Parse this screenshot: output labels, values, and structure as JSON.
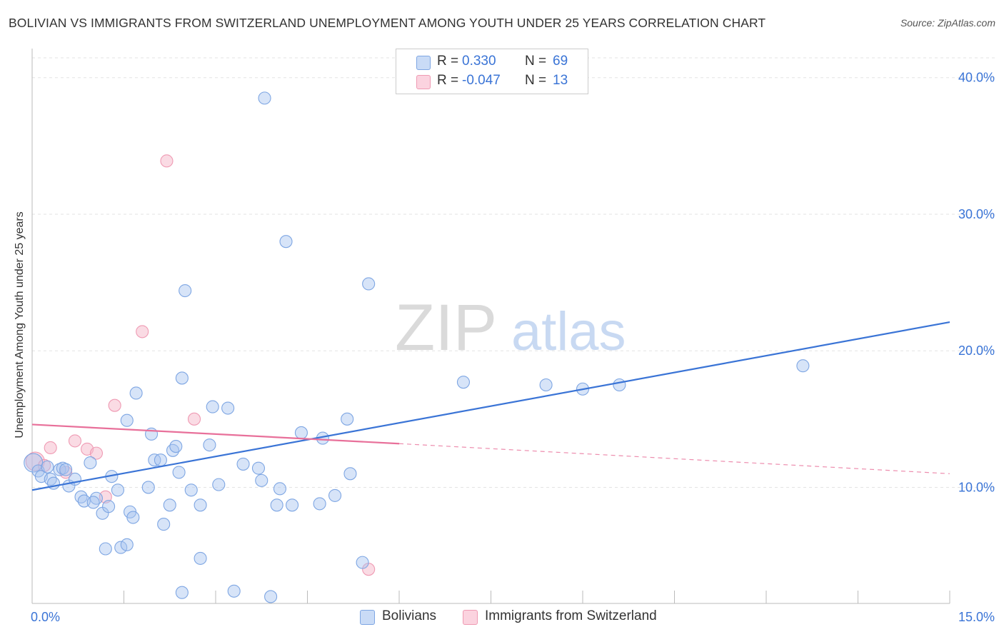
{
  "title": "BOLIVIAN VS IMMIGRANTS FROM SWITZERLAND UNEMPLOYMENT AMONG YOUTH UNDER 25 YEARS CORRELATION CHART",
  "source": "Source: ZipAtlas.com",
  "watermark": {
    "zip": "ZIP",
    "atlas": "atlas"
  },
  "legend_stats": [
    {
      "r_label": "R =",
      "r_value": "0.330",
      "n_label": "N =",
      "n_value": "69",
      "color": "#a7c4ef"
    },
    {
      "r_label": "R =",
      "r_value": "-0.047",
      "n_label": "N =",
      "n_value": "13",
      "color": "#f5b8c9"
    }
  ],
  "bottom_legend": [
    {
      "label": "Bolivians",
      "color": "#a7c4ef"
    },
    {
      "label": "Immigrants from Switzerland",
      "color": "#f5b8c9"
    }
  ],
  "chart_data": {
    "type": "scatter",
    "title": "BOLIVIAN VS IMMIGRANTS FROM SWITZERLAND UNEMPLOYMENT AMONG YOUTH UNDER 25 YEARS CORRELATION CHART",
    "xlabel": "",
    "ylabel": "Unemployment Among Youth under 25 years",
    "xlim": [
      0,
      15
    ],
    "ylim": [
      1.5,
      41.5
    ],
    "x_ticks": [
      {
        "value": 0,
        "label": "0.0%"
      },
      {
        "value": 15,
        "label": "15.0%"
      }
    ],
    "y_ticks": [
      {
        "value": 10,
        "label": "10.0%"
      },
      {
        "value": 20,
        "label": "20.0%"
      },
      {
        "value": 30,
        "label": "30.0%"
      },
      {
        "value": 40,
        "label": "40.0%"
      }
    ],
    "grid": true,
    "legend_position": "top-center",
    "series": [
      {
        "name": "Bolivians",
        "color": "#3a74d6",
        "fill": "#a7c4ef",
        "trend": {
          "x": [
            0,
            15
          ],
          "y": [
            9.8,
            22.1
          ]
        },
        "points": [
          [
            0.02,
            11.8
          ],
          [
            0.1,
            11.2
          ],
          [
            0.15,
            10.8
          ],
          [
            0.25,
            11.5
          ],
          [
            0.3,
            10.6
          ],
          [
            0.35,
            10.3
          ],
          [
            0.45,
            11.3
          ],
          [
            0.5,
            11.4
          ],
          [
            0.6,
            10.1
          ],
          [
            0.7,
            10.6
          ],
          [
            0.8,
            9.3
          ],
          [
            0.85,
            9.0
          ],
          [
            0.95,
            11.8
          ],
          [
            1.05,
            9.2
          ],
          [
            1.15,
            8.1
          ],
          [
            1.25,
            8.6
          ],
          [
            1.3,
            10.8
          ],
          [
            1.4,
            9.8
          ],
          [
            1.55,
            14.9
          ],
          [
            1.6,
            8.2
          ],
          [
            1.65,
            7.8
          ],
          [
            1.7,
            16.9
          ],
          [
            1.9,
            10.0
          ],
          [
            1.95,
            13.9
          ],
          [
            2.0,
            12.0
          ],
          [
            2.1,
            12.0
          ],
          [
            2.15,
            7.3
          ],
          [
            2.25,
            8.7
          ],
          [
            2.3,
            12.7
          ],
          [
            2.35,
            13.0
          ],
          [
            2.4,
            11.1
          ],
          [
            2.6,
            9.8
          ],
          [
            2.75,
            8.7
          ],
          [
            2.9,
            13.1
          ],
          [
            2.95,
            15.9
          ],
          [
            3.05,
            10.2
          ],
          [
            3.2,
            15.8
          ],
          [
            3.45,
            11.7
          ],
          [
            3.7,
            11.4
          ],
          [
            3.75,
            10.5
          ],
          [
            3.8,
            38.5
          ],
          [
            4.15,
            28.0
          ],
          [
            4.0,
            8.7
          ],
          [
            4.05,
            9.9
          ],
          [
            4.25,
            8.7
          ],
          [
            4.4,
            14.0
          ],
          [
            4.75,
            13.6
          ],
          [
            4.95,
            9.4
          ],
          [
            5.15,
            15.0
          ],
          [
            5.2,
            11.0
          ],
          [
            5.4,
            4.5
          ],
          [
            5.5,
            24.9
          ],
          [
            2.5,
            24.4
          ],
          [
            2.45,
            18.0
          ],
          [
            1.45,
            5.6
          ],
          [
            1.55,
            5.8
          ],
          [
            1.2,
            5.5
          ],
          [
            2.45,
            2.3
          ],
          [
            3.3,
            2.4
          ],
          [
            3.9,
            2.0
          ],
          [
            2.75,
            4.8
          ],
          [
            7.05,
            17.7
          ],
          [
            8.4,
            17.5
          ],
          [
            9.0,
            17.2
          ],
          [
            9.6,
            17.5
          ],
          [
            12.6,
            18.9
          ],
          [
            0.55,
            11.3
          ],
          [
            4.7,
            8.8
          ],
          [
            1.0,
            8.9
          ]
        ]
      },
      {
        "name": "Immigrants from Switzerland",
        "color": "#e8709a",
        "fill": "#f5b8c9",
        "trend": {
          "x": [
            0,
            6
          ],
          "y": [
            14.6,
            13.2
          ]
        },
        "trend_dashed": {
          "x": [
            6,
            15
          ],
          "y": [
            13.2,
            11.0
          ]
        },
        "points": [
          [
            0.05,
            11.9
          ],
          [
            0.2,
            11.6
          ],
          [
            0.3,
            12.9
          ],
          [
            0.55,
            11.1
          ],
          [
            0.7,
            13.4
          ],
          [
            0.9,
            12.8
          ],
          [
            1.05,
            12.5
          ],
          [
            1.2,
            9.3
          ],
          [
            1.35,
            16.0
          ],
          [
            1.8,
            21.4
          ],
          [
            2.2,
            33.9
          ],
          [
            2.65,
            15.0
          ],
          [
            5.5,
            4.0
          ]
        ]
      }
    ]
  }
}
